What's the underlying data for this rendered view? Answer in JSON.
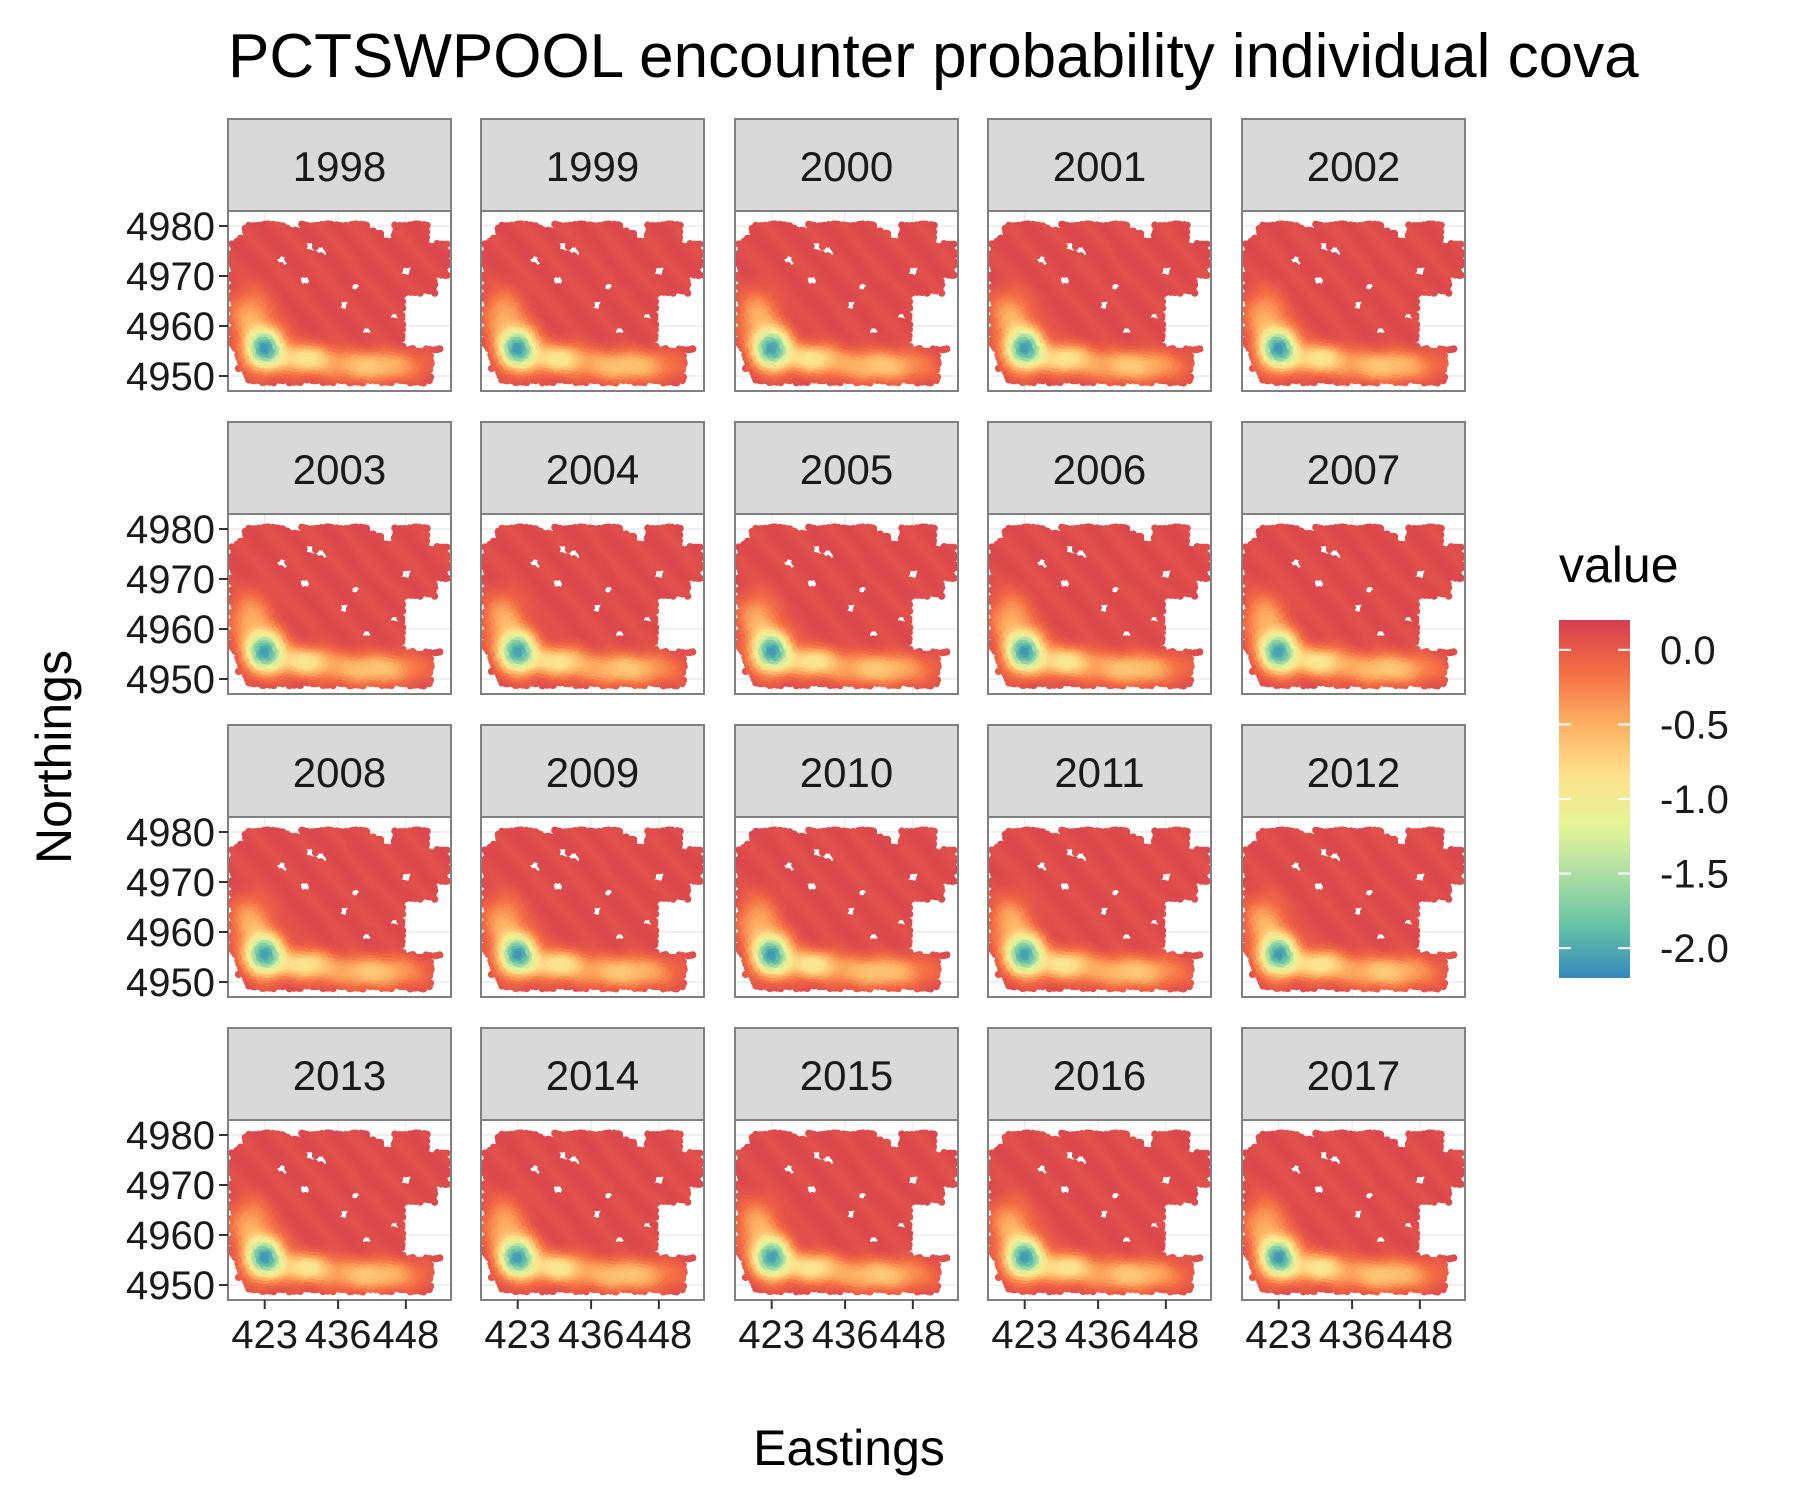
{
  "chart_data": {
    "type": "scatter",
    "title": "PCTSWPOOL encounter probability individual cova",
    "xlabel": "Eastings",
    "ylabel": "Northings",
    "facets": [
      "1998",
      "1999",
      "2000",
      "2001",
      "2002",
      "2003",
      "2004",
      "2005",
      "2006",
      "2007",
      "2008",
      "2009",
      "2010",
      "2011",
      "2012",
      "2013",
      "2014",
      "2015",
      "2016",
      "2017"
    ],
    "facet_layout": {
      "rows": 4,
      "cols": 5
    },
    "x_ticks": [
      423,
      436,
      448
    ],
    "y_ticks": [
      4980,
      4970,
      4960,
      4950
    ],
    "xlim": [
      416.5,
      456
    ],
    "ylim": [
      4947,
      4983
    ],
    "grid": true,
    "legend": {
      "title": "value",
      "position": "right",
      "ticks": [
        0.0,
        -0.5,
        -1.0,
        -1.5,
        -2.0
      ],
      "tick_labels": [
        "0.0",
        "-0.5",
        "-1.0",
        "-1.5",
        "-2.0"
      ],
      "range": [
        -2.2,
        0.2
      ],
      "palette": [
        "#3288bd",
        "#66c2a5",
        "#abdda4",
        "#e6f598",
        "#fee08b",
        "#fdae61",
        "#f46d43",
        "#d53e4f"
      ]
    },
    "description": "Each facet shows the same spatial field; low values concentrated in the southwest corner near Easting 423, Northing 4955."
  }
}
